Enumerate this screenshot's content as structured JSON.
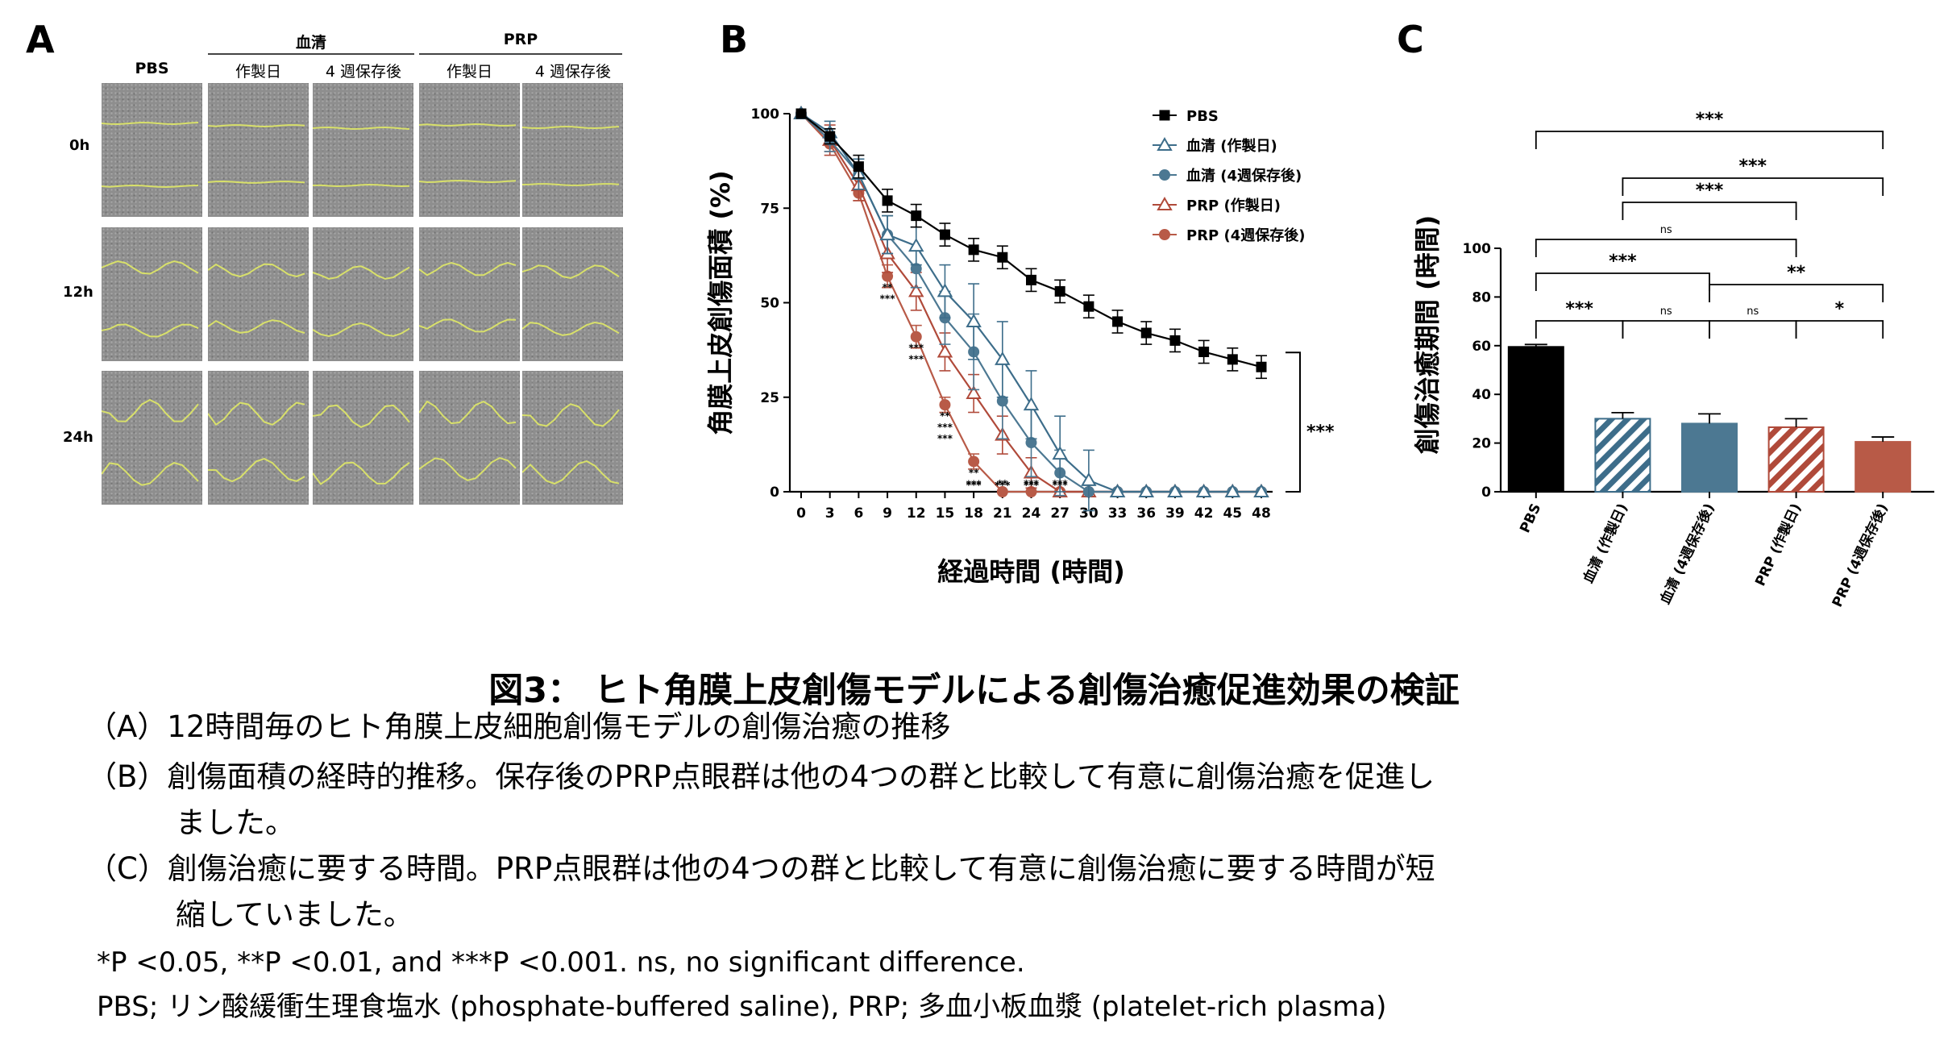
{
  "panel_a": {
    "letter": "A",
    "group_serum": "血清",
    "group_prp": "PRP",
    "columns": [
      "PBS",
      "作製日",
      "4 週保存後",
      "作製日",
      "4 週保存後"
    ],
    "rows": [
      "0h",
      "12h",
      "24h"
    ]
  },
  "panel_b": {
    "letter": "B"
  },
  "panel_c": {
    "letter": "C"
  },
  "chart_data": [
    {
      "type": "line",
      "xlabel": "経過時間 (時間)",
      "ylabel": "角膜上皮創傷面積 (%)",
      "x": [
        0,
        3,
        6,
        9,
        12,
        15,
        18,
        21,
        24,
        27,
        30,
        33,
        36,
        39,
        42,
        45,
        48
      ],
      "yticks": [
        0,
        25,
        50,
        75,
        100
      ],
      "ylim": [
        0,
        100
      ],
      "legend_position": "top-right",
      "significance_label": "***",
      "series": [
        {
          "name": "PBS",
          "color": "#000000",
          "marker": "filled-square",
          "values": [
            100,
            94,
            86,
            77,
            73,
            68,
            64,
            62,
            56,
            53,
            49,
            45,
            42,
            40,
            37,
            35,
            33
          ],
          "errors": [
            0,
            2,
            3,
            3,
            3,
            3,
            3,
            3,
            3,
            3,
            3,
            3,
            3,
            3,
            3,
            3,
            3
          ]
        },
        {
          "name": "血清 (作製日)",
          "color": "#3d6d8a",
          "marker": "open-triangle",
          "values": [
            100,
            95,
            84,
            68,
            65,
            53,
            45,
            35,
            23,
            10,
            3,
            0,
            0,
            0,
            0,
            0,
            0
          ],
          "errors": [
            0,
            3,
            4,
            5,
            5,
            7,
            10,
            10,
            9,
            10,
            8,
            0,
            0,
            0,
            0,
            0,
            0
          ]
        },
        {
          "name": "血清 (4週保存後)",
          "color": "#4c7892",
          "marker": "filled-circle",
          "values": [
            100,
            93,
            84,
            68,
            59,
            46,
            37,
            24,
            13,
            5,
            0,
            0,
            0,
            0,
            0,
            0,
            0
          ],
          "errors": [
            0,
            3,
            4,
            5,
            5,
            7,
            10,
            10,
            9,
            6,
            0,
            0,
            0,
            0,
            0,
            0,
            0
          ]
        },
        {
          "name": "PRP (作製日)",
          "color": "#b04a3a",
          "marker": "open-triangle",
          "values": [
            100,
            93,
            81,
            63,
            53,
            37,
            26,
            15,
            5,
            0,
            0,
            0,
            0,
            0,
            0,
            0,
            0
          ],
          "errors": [
            0,
            4,
            4,
            5,
            5,
            5,
            5,
            5,
            4,
            0,
            0,
            0,
            0,
            0,
            0,
            0,
            0
          ]
        },
        {
          "name": "PRP (4週保存後)",
          "color": "#b85a47",
          "marker": "filled-circle",
          "values": [
            100,
            92,
            79,
            57,
            41,
            23,
            8,
            0,
            0,
            0,
            0,
            0,
            0,
            0,
            0,
            0,
            0
          ],
          "errors": [
            0,
            2,
            2,
            3,
            3,
            2,
            2,
            0,
            0,
            0,
            0,
            0,
            0,
            0,
            0,
            0,
            0
          ]
        }
      ],
      "point_stars": [
        {
          "x": 9,
          "labels": [
            "**",
            "***"
          ]
        },
        {
          "x": 12,
          "labels": [
            "***",
            "***"
          ]
        },
        {
          "x": 15,
          "labels": [
            "**",
            "***",
            "***"
          ]
        },
        {
          "x": 18,
          "labels": [
            "**",
            "***",
            "***"
          ]
        },
        {
          "x": 21,
          "labels": [
            "**",
            "***",
            "***"
          ]
        },
        {
          "x": 24,
          "labels": [
            "***",
            "***",
            "***"
          ]
        },
        {
          "x": 27,
          "labels": [
            "***",
            "***"
          ]
        }
      ]
    },
    {
      "type": "bar",
      "ylabel": "創傷治癒期間 (時間)",
      "categories": [
        "PBS",
        "血清 (作製日)",
        "血清 (4週保存後)",
        "PRP (作製日)",
        "PRP (4週保存後)"
      ],
      "values": [
        59.5,
        30,
        28,
        26.5,
        20.5
      ],
      "errors": [
        1,
        2.5,
        4,
        3.5,
        2
      ],
      "colors": [
        "#000000",
        "#3d6d8a",
        "#4c7892",
        "#b04a3a",
        "#b85a47"
      ],
      "hatched": [
        false,
        true,
        false,
        true,
        false
      ],
      "yticks": [
        0,
        20,
        40,
        60,
        80,
        100
      ],
      "ylim": [
        0,
        100
      ],
      "comparisons": [
        {
          "from": 0,
          "to": 4,
          "label": "***"
        },
        {
          "from": 1,
          "to": 4,
          "label": "***"
        },
        {
          "from": 1,
          "to": 3,
          "label": "***"
        },
        {
          "from": 0,
          "to": 3,
          "label": "ns"
        },
        {
          "from": 0,
          "to": 2,
          "label": "***"
        },
        {
          "from": 2,
          "to": 4,
          "label": "**"
        },
        {
          "from": 0,
          "to": 1,
          "label": "***"
        },
        {
          "from": 1,
          "to": 2,
          "label": "ns"
        },
        {
          "from": 2,
          "to": 3,
          "label": "ns"
        },
        {
          "from": 3,
          "to": 4,
          "label": "*"
        }
      ]
    }
  ],
  "caption": {
    "title": "図3： ヒト角膜上皮創傷モデルによる創傷治癒促進効果の検証",
    "a": "（A）12時間毎のヒト角膜上皮細胞創傷モデルの創傷治癒の推移",
    "b1": "（B）創傷面積の経時的推移。保存後のPRP点眼群は他の4つの群と比較して有意に創傷治癒を促進し",
    "b2": "ました。",
    "c1": "（C）創傷治癒に要する時間。PRP点眼群は他の4つの群と比較して有意に創傷治癒に要する時間が短",
    "c2": "縮していました。",
    "significance": "*P <0.05, **P <0.01, and ***P <0.001. ns, no significant difference.",
    "abbreviations": "PBS; リン酸緩衝生理食塩水 (phosphate-buffered saline), PRP; 多血小板血漿 (platelet-rich plasma)"
  }
}
